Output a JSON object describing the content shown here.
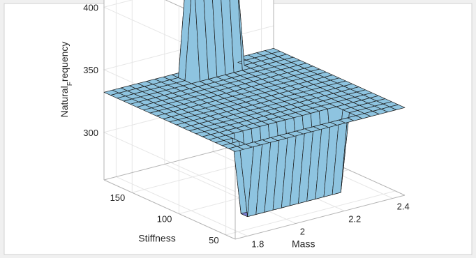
{
  "chart_data": {
    "type": "surface",
    "title": "",
    "xlabel": "Mass",
    "ylabel": "Stiffness",
    "zlabel": "Natural_Frequency",
    "xlim": [
      1.75,
      2.45
    ],
    "ylim": [
      40,
      180
    ],
    "zlim": [
      262,
      428
    ],
    "xticks": [
      1.8,
      2,
      2.2,
      2.4
    ],
    "yticks": [
      50,
      100,
      150
    ],
    "zticks": [
      300,
      350,
      400
    ],
    "xtick_labels": [
      "1.8",
      "2",
      "2.2",
      "2.4"
    ],
    "ytick_labels": [
      "50",
      "100",
      "150"
    ],
    "ztick_labels": [
      "300",
      "350",
      "400"
    ],
    "z_base": 332,
    "features": [
      {
        "kind": "peak",
        "x_range": [
          2.05,
          2.25
        ],
        "y_range": [
          160,
          178
        ],
        "z": 420
      },
      {
        "kind": "valley",
        "x_range": [
          1.85,
          2.25
        ],
        "y_range": [
          48,
          62
        ],
        "z": 270
      }
    ],
    "colors": {
      "surface": "#8ec4e0",
      "surface_dark": "#7b7fd1",
      "top": "#dff1f8",
      "edges": "#1a1a1a",
      "panel": "#ffffff",
      "grid": "#e6e6e6"
    },
    "grid": true
  }
}
